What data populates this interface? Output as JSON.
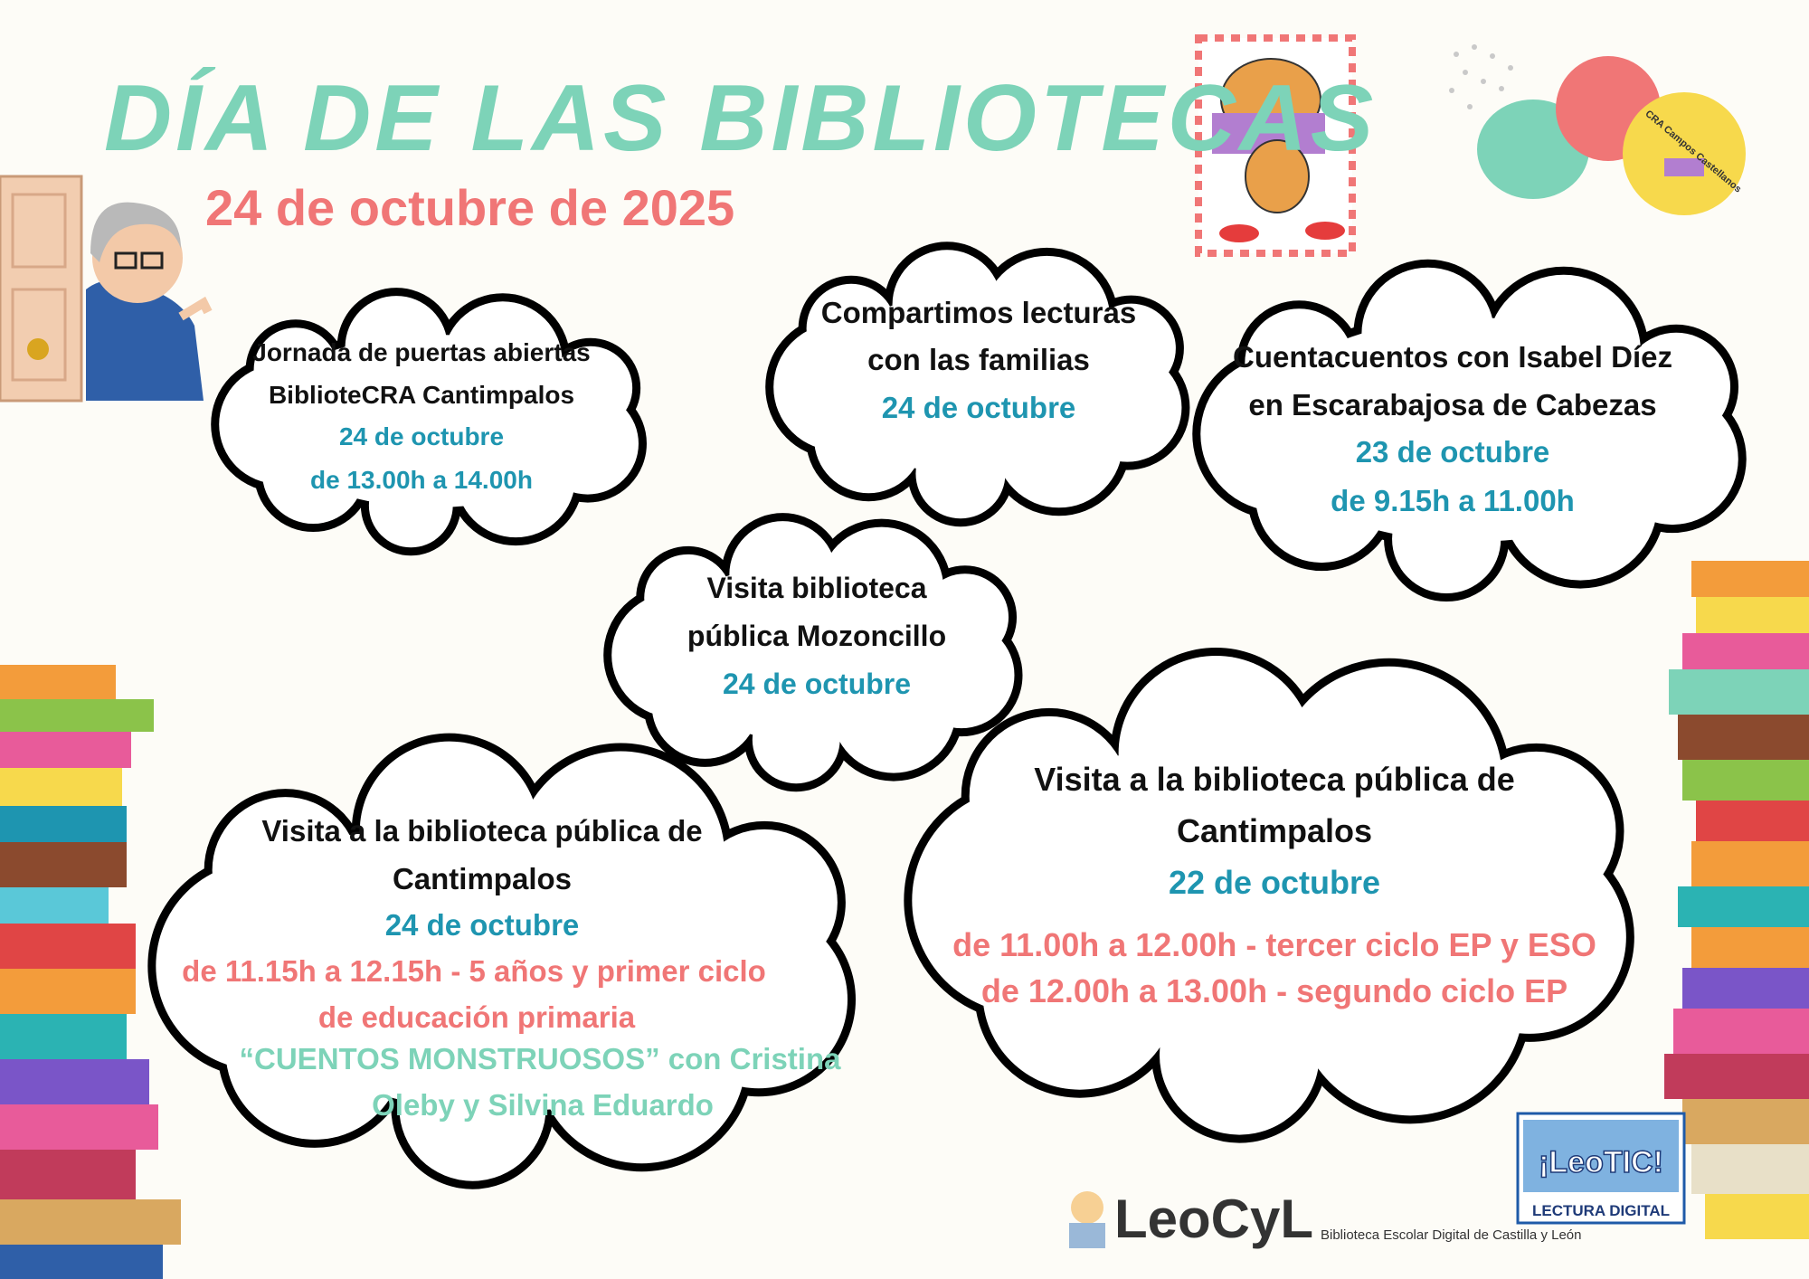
{
  "header": {
    "title": "DÍA DE LAS BIBLIOTECAS",
    "date": "24  de octubre de 2025"
  },
  "events": [
    {
      "lines": [
        "Jornada de puertas abiertas",
        "BiblioteCRA Cantimpalos",
        "24 de octubre",
        "de 13.00h a 14.00h"
      ]
    },
    {
      "lines": [
        "Compartimos lecturas",
        "con las familias",
        "24 de octubre"
      ]
    },
    {
      "lines": [
        "Cuentacuentos con Isabel Díez",
        "en Escarabajosa de Cabezas",
        "23 de octubre",
        "de 9.15h a 11.00h"
      ]
    },
    {
      "lines": [
        "Visita biblioteca",
        "pública Mozoncillo",
        "24 de octubre"
      ]
    },
    {
      "lines": [
        "Visita a la biblioteca pública de",
        "Cantimpalos",
        "24 de octubre",
        "de 11.15h a 12.15h - 5 años y primer ciclo",
        "de educación primaria",
        "“CUENTOS MONSTRUOSOS” con Cristina",
        "Oleby y Silvina Eduardo"
      ]
    },
    {
      "lines": [
        "Visita a la biblioteca pública de",
        "Cantimpalos",
        "22 de octubre",
        "de 11.00h a 12.00h - tercer ciclo EP y ESO",
        "de 12.00h a 13.00h - segundo ciclo EP"
      ]
    }
  ],
  "logos": {
    "cra": "CRA Campos Castellanos",
    "leocyl": "LeoCyL",
    "leocyl_sub": "Biblioteca Escolar Digital de Castilla y León",
    "leotic": "¡LeoTIC!",
    "leotic_sub": "LECTURA DIGITAL"
  }
}
